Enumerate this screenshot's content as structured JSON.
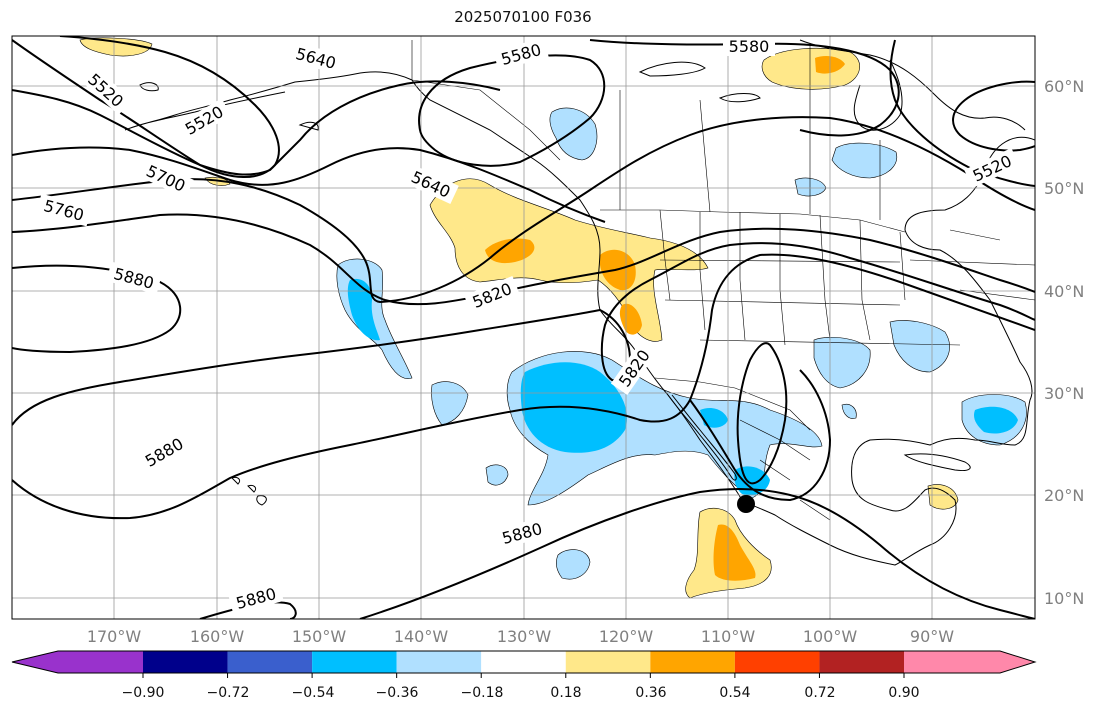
{
  "title": "2025070100 F036",
  "map": {
    "lat_labels": [
      "60°N",
      "50°N",
      "40°N",
      "30°N",
      "20°N",
      "10°N"
    ],
    "lon_labels": [
      "170°W",
      "160°W",
      "150°W",
      "140°W",
      "130°W",
      "120°W",
      "110°W",
      "100°W",
      "90°W"
    ],
    "contour_labels": [
      "5640",
      "5580",
      "5580",
      "5520",
      "5520",
      "5520",
      "5700",
      "5640",
      "5760",
      "5880",
      "5820",
      "5820",
      "5880",
      "5880",
      "5880"
    ],
    "marker": "storm-position-dot"
  },
  "colorbar": {
    "ticks": [
      "−0.90",
      "−0.72",
      "−0.54",
      "−0.36",
      "−0.18",
      "0.18",
      "0.36",
      "0.54",
      "0.72",
      "0.90"
    ],
    "colors": [
      "#9932cc",
      "#00008b",
      "#3a5fcd",
      "#00bfff",
      "#b0e0ff",
      "#ffffff",
      "#ffe88a",
      "#ffa500",
      "#ff4000",
      "#b22222",
      "#ff88aa"
    ]
  }
}
